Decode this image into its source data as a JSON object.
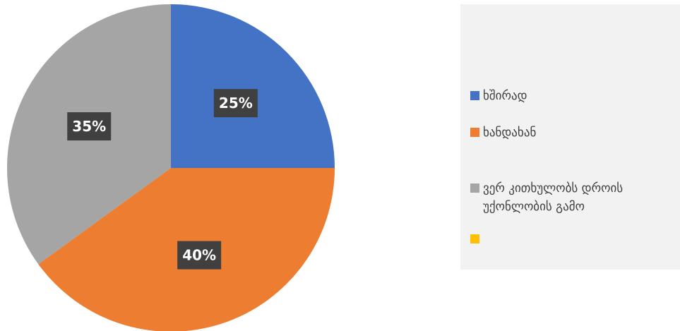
{
  "chart_data": {
    "type": "pie",
    "categories": [
      "ხშირად",
      "ხანდახან",
      "ვერ კითხულობს დროის უქონლობის გამო",
      ""
    ],
    "values": [
      25,
      40,
      35,
      0
    ],
    "labels": [
      "25%",
      "40%",
      "35%"
    ],
    "colors": [
      "#4472c4",
      "#ed7d31",
      "#a5a5a5",
      "#ffc000"
    ],
    "start_angle_deg": 0,
    "direction": "clockwise",
    "legend_position": "right",
    "title": ""
  }
}
